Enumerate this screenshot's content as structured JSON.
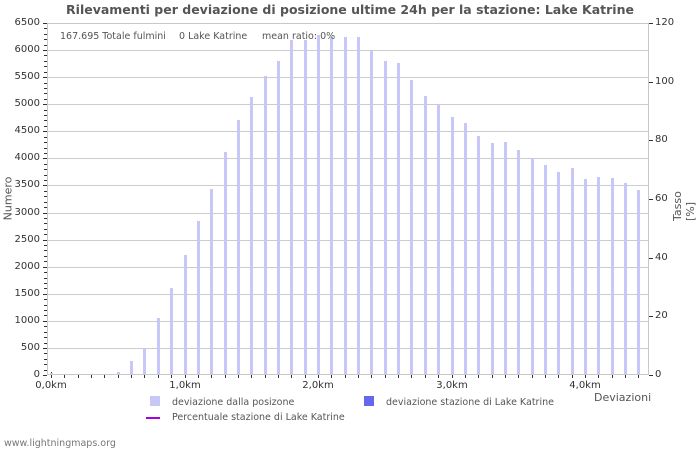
{
  "chart_data": {
    "type": "bar",
    "title": "Rilevamenti per deviazione di posizione ultime 24h per la stazione: Lake Katrine",
    "xlabel": "Deviazioni",
    "ylabel": "Numero",
    "ylabel_right": "Tasso [%]",
    "ylim": [
      0,
      6500
    ],
    "ylim_right": [
      0,
      120
    ],
    "yticks": [
      0,
      500,
      1000,
      1500,
      2000,
      2500,
      3000,
      3500,
      4000,
      4500,
      5000,
      5500,
      6000,
      6500
    ],
    "yticks_right": [
      0,
      20,
      40,
      60,
      80,
      100,
      120
    ],
    "xtick_labels": [
      "0,0km",
      "1,0km",
      "2,0km",
      "3,0km",
      "4,0km"
    ],
    "grid": true,
    "legend_position": "bottom",
    "x": [
      0.0,
      0.1,
      0.2,
      0.3,
      0.4,
      0.5,
      0.6,
      0.7,
      0.8,
      0.9,
      1.0,
      1.1,
      1.2,
      1.3,
      1.4,
      1.5,
      1.6,
      1.7,
      1.8,
      1.9,
      2.0,
      2.1,
      2.2,
      2.3,
      2.4,
      2.5,
      2.6,
      2.7,
      2.8,
      2.9,
      3.0,
      3.1,
      3.2,
      3.3,
      3.4,
      3.5,
      3.6,
      3.7,
      3.8,
      3.9,
      4.0,
      4.1,
      4.2,
      4.3,
      4.4
    ],
    "series": [
      {
        "name": "deviazione dalla posizone",
        "color": "#c8c8f8",
        "values": [
          30,
          0,
          0,
          0,
          20,
          60,
          260,
          500,
          1050,
          1600,
          2220,
          2850,
          3430,
          4110,
          4710,
          5130,
          5520,
          5800,
          6190,
          6190,
          6280,
          6250,
          6240,
          6240,
          6000,
          5800,
          5760,
          5440,
          5150,
          5000,
          4770,
          4650,
          4410,
          4290,
          4300,
          4150,
          4000,
          3880,
          3740,
          3820,
          3620,
          3660,
          3640,
          3550,
          3420
        ]
      },
      {
        "name": "deviazione stazione di Lake Katrine",
        "color": "#6666ee",
        "values": [
          0,
          0,
          0,
          0,
          0,
          0,
          0,
          0,
          0,
          0,
          0,
          0,
          0,
          0,
          0,
          0,
          0,
          0,
          0,
          0,
          0,
          0,
          0,
          0,
          0,
          0,
          0,
          0,
          0,
          0,
          0,
          0,
          0,
          0,
          0,
          0,
          0,
          0,
          0,
          0,
          0,
          0,
          0,
          0,
          0
        ]
      },
      {
        "name": "Percentuale stazione di Lake Katrine",
        "color": "#aa00dd",
        "type": "line",
        "axis": "right",
        "values": []
      }
    ],
    "annotations": [
      "167.695 Totale fulmini",
      "0 Lake Katrine",
      "mean ratio: 0%"
    ]
  },
  "info": {
    "total": "167.695 Totale fulmini",
    "station": "0 Lake Katrine",
    "ratio": "mean ratio: 0%"
  },
  "legend": {
    "item1": "deviazione dalla posizone",
    "item2": "deviazione stazione di Lake Katrine",
    "item3": "Percentuale stazione di Lake Katrine"
  },
  "footer": "www.lightningmaps.org"
}
